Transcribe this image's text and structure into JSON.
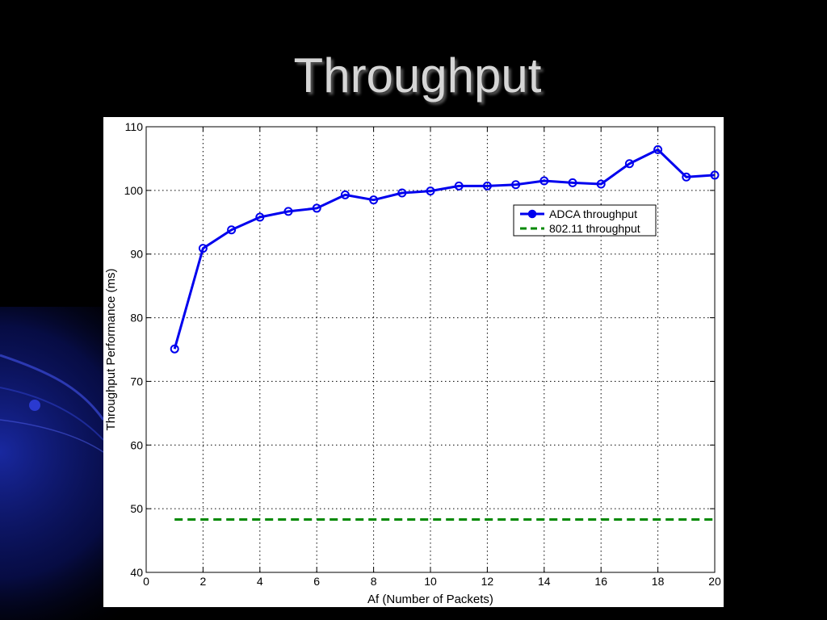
{
  "slide": {
    "title": "Throughput"
  },
  "colors": {
    "background": "#000000",
    "title": "#d6d6d6",
    "accent_decor": "#1a2aa8"
  },
  "chart_data": {
    "type": "line",
    "title": "",
    "xlabel": "Af (Number of Packets)",
    "ylabel": "Throughput Performance (ms)",
    "xlim": [
      0,
      20
    ],
    "ylim": [
      40,
      110
    ],
    "xticks": [
      0,
      2,
      4,
      6,
      8,
      10,
      12,
      14,
      16,
      18,
      20
    ],
    "yticks": [
      40,
      50,
      60,
      70,
      80,
      90,
      100,
      110
    ],
    "grid": true,
    "legend_position": "upper-right",
    "series": [
      {
        "name": "ADCA throughput",
        "color": "#0000ee",
        "line_style": "solid",
        "marker": "circle",
        "x": [
          1,
          2,
          3,
          4,
          5,
          6,
          7,
          8,
          9,
          10,
          11,
          12,
          13,
          14,
          15,
          16,
          17,
          18,
          19,
          20
        ],
        "y": [
          75.1,
          90.9,
          93.8,
          95.8,
          96.7,
          97.2,
          99.3,
          98.5,
          99.6,
          99.9,
          100.7,
          100.7,
          100.9,
          101.5,
          101.2,
          101.0,
          104.2,
          106.4,
          102.1,
          102.4
        ]
      },
      {
        "name": "802.11 throughput",
        "color": "#008800",
        "line_style": "dashed",
        "marker": "none",
        "x": [
          1,
          20
        ],
        "y": [
          48.3,
          48.3
        ]
      }
    ]
  }
}
